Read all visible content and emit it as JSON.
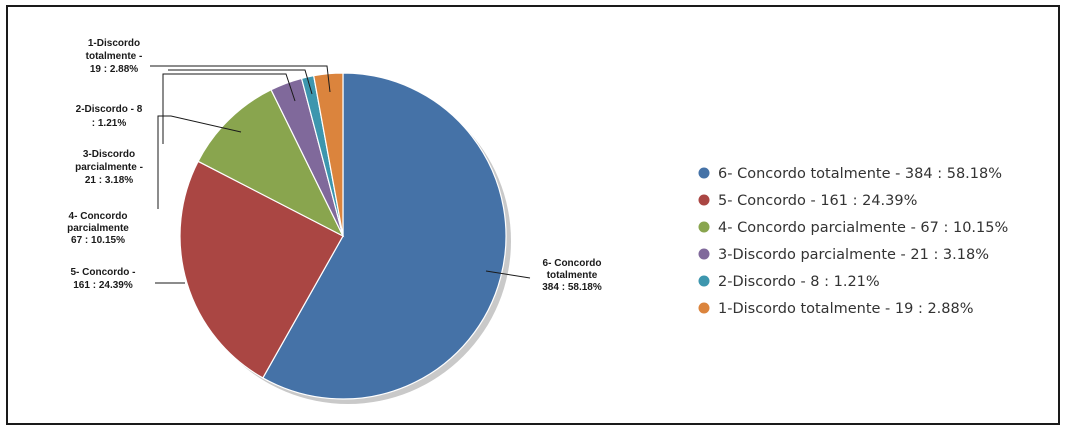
{
  "chart_data": {
    "type": "pie",
    "title": "",
    "slices": [
      {
        "label": "6- Concordo totalmente",
        "value": 384,
        "percent": 58.18,
        "color": "#4572a7",
        "callout": [
          "6- Concordo",
          "totalmente",
          "384 : 58.18%"
        ],
        "legend": "6- Concordo totalmente  - 384 : 58.18%"
      },
      {
        "label": "5- Concordo",
        "value": 161,
        "percent": 24.39,
        "color": "#aa4643",
        "callout": [
          "5- Concordo -",
          "161 : 24.39%"
        ],
        "legend": "5- Concordo - 161 : 24.39%"
      },
      {
        "label": "4- Concordo parcialmente",
        "value": 67,
        "percent": 10.15,
        "color": "#89a54e",
        "callout": [
          "4- Concordo",
          "parcialmente",
          "67 : 10.15%"
        ],
        "legend": "4- Concordo parcialmente  - 67 : 10.15%"
      },
      {
        "label": "3-Discordo parcialmente",
        "value": 21,
        "percent": 3.18,
        "color": "#80699b",
        "callout": [
          "3-Discordo",
          "parcialmente  -",
          "21 : 3.18%"
        ],
        "legend": "3-Discordo parcialmente  - 21 : 3.18%"
      },
      {
        "label": "2-Discordo",
        "value": 8,
        "percent": 1.21,
        "color": "#3d96ae",
        "callout": [
          "2-Discordo - 8",
          ": 1.21%"
        ],
        "legend": "2-Discordo - 8 : 1.21%"
      },
      {
        "label": "1-Discordo totalmente",
        "value": 19,
        "percent": 2.88,
        "color": "#db843d",
        "callout": [
          "1-Discordo",
          "totalmente  -",
          "19 : 2.88%"
        ],
        "legend": "1-Discordo totalmente  - 19 : 2.88%"
      }
    ],
    "start_angle_deg": 0,
    "direction": "clockwise",
    "legend_placement": "right"
  }
}
